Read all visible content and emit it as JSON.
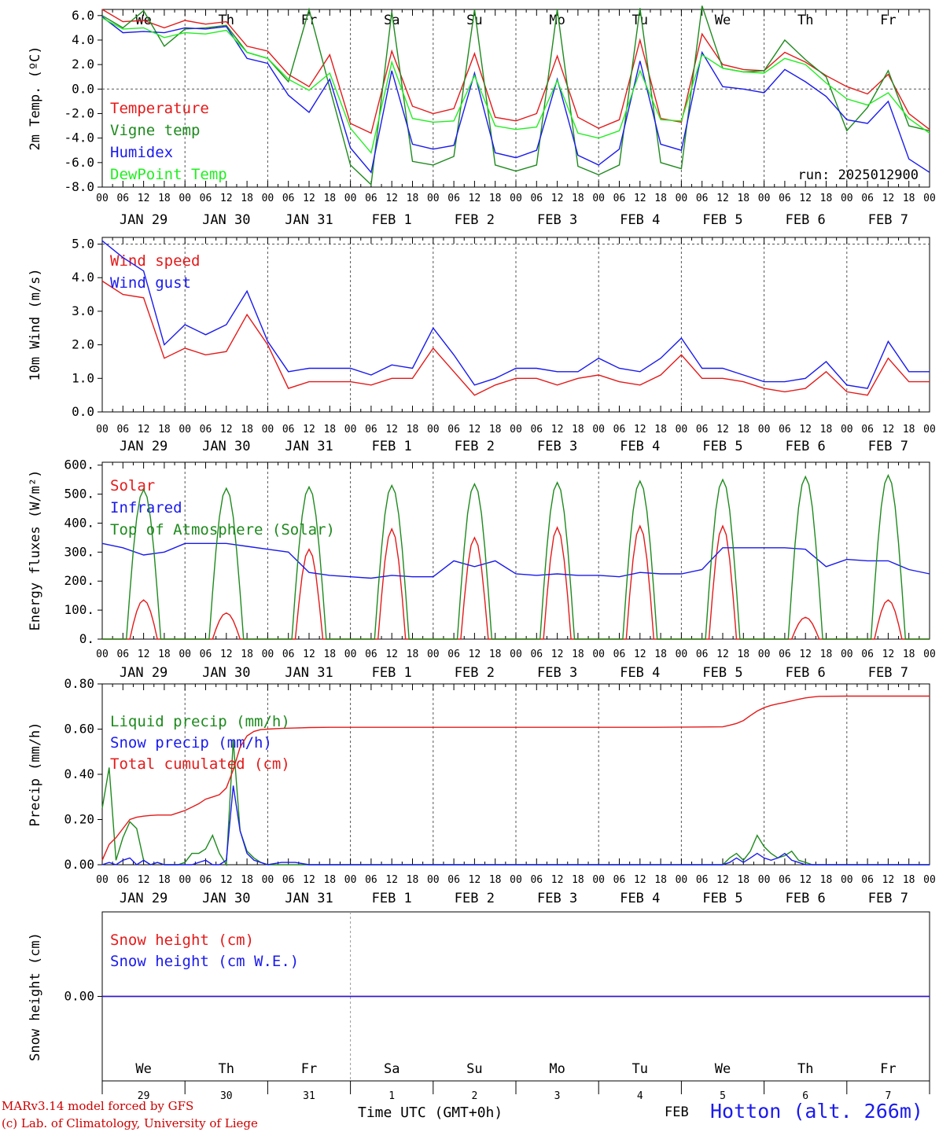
{
  "run_label": "run: 2025012900",
  "station": "Hotton (alt. 266m)",
  "credit_lines": [
    "MARv3.14 model forced by GFS",
    "(c) Lab. of Climatology, University of Liege"
  ],
  "time_axis_label": "Time UTC (GMT+0h)",
  "month_label": "FEB",
  "weekdays": [
    {
      "label": "We",
      "color": "#000000"
    },
    {
      "label": "Th",
      "color": "#000000"
    },
    {
      "label": "Fr",
      "color": "#000000"
    },
    {
      "label": "Sa",
      "color": "#e41a1a"
    },
    {
      "label": "Su",
      "color": "#e41a1a"
    },
    {
      "label": "Mo",
      "color": "#000000"
    },
    {
      "label": "Tu",
      "color": "#000000"
    },
    {
      "label": "We",
      "color": "#000000"
    },
    {
      "label": "Th",
      "color": "#000000"
    },
    {
      "label": "Fr",
      "color": "#000000"
    }
  ],
  "dates": [
    "JAN 29",
    "JAN 30",
    "JAN 31",
    "FEB  1",
    "FEB  2",
    "FEB  3",
    "FEB  4",
    "FEB  5",
    "FEB  6",
    "FEB  7"
  ],
  "day_numbers": [
    "29",
    "30",
    "31",
    "1",
    "2",
    "3",
    "4",
    "5",
    "6",
    "7"
  ],
  "hour_ticks": [
    "00",
    "06",
    "12",
    "18"
  ],
  "colors": {
    "red": "#e41a1a",
    "darkgreen": "#1e8a1e",
    "blue": "#1a1aee",
    "lightgreen": "#22ee22",
    "grid": "#555555"
  },
  "chart_data": [
    {
      "type": "line",
      "ylabel": "2m Temp. (ºC)",
      "ylim": [
        -8,
        6.5
      ],
      "yticks": [
        "6.0",
        "4.0",
        "2.0",
        "0.0",
        "-2.0",
        "-4.0",
        "-6.0",
        "-8.0"
      ],
      "ytick_values": [
        6,
        4,
        2,
        0,
        -2,
        -4,
        -6,
        -8
      ],
      "dashed_y": [
        0
      ],
      "show_weekdays": true,
      "x_hours": [
        0,
        6,
        12,
        18,
        24,
        30,
        36,
        42,
        48,
        54,
        60,
        66,
        72,
        78,
        84,
        90,
        96,
        102,
        108,
        114,
        120,
        126,
        132,
        138,
        144,
        150,
        156,
        162,
        168,
        174,
        180,
        186,
        192,
        198,
        204,
        210,
        216,
        222,
        228,
        234,
        240
      ],
      "series": [
        {
          "name": "Temperature",
          "color": "#e41a1a",
          "values": [
            6.5,
            5.5,
            5.6,
            5.0,
            5.6,
            5.3,
            5.5,
            3.5,
            3.1,
            1.2,
            0.2,
            2.8,
            -2.8,
            -3.6,
            3.1,
            -1.4,
            -2.0,
            -1.6,
            2.9,
            -2.3,
            -2.6,
            -2.0,
            2.7,
            -2.3,
            -3.2,
            -2.5,
            4.0,
            -2.4,
            -2.7,
            4.5,
            2.0,
            1.6,
            1.5,
            3.0,
            2.2,
            1.1,
            0.2,
            -0.4,
            1.2,
            -2.0,
            -3.3
          ]
        },
        {
          "name": "Vigne temp",
          "color": "#1e8a1e",
          "values": [
            6.0,
            5.0,
            6.4,
            3.5,
            4.9,
            5.0,
            5.2,
            3.0,
            2.5,
            0.6,
            6.5,
            0.1,
            -6.2,
            -7.8,
            6.3,
            -5.9,
            -6.2,
            -5.5,
            6.5,
            -6.2,
            -6.7,
            -6.2,
            6.5,
            -6.3,
            -7.0,
            -6.2,
            6.6,
            -6.0,
            -6.5,
            6.8,
            1.7,
            1.4,
            1.5,
            4.0,
            2.4,
            1.0,
            -3.4,
            -1.5,
            1.5,
            -3.0,
            -3.4
          ]
        },
        {
          "name": "Humidex",
          "color": "#1a1aee",
          "values": [
            5.9,
            4.6,
            4.7,
            4.6,
            5.0,
            4.9,
            5.1,
            2.5,
            2.1,
            -0.5,
            -1.9,
            0.8,
            -4.8,
            -6.8,
            1.5,
            -4.5,
            -4.9,
            -4.6,
            1.3,
            -5.2,
            -5.6,
            -5.0,
            0.8,
            -5.4,
            -6.2,
            -4.9,
            2.3,
            -4.5,
            -5.0,
            3.0,
            0.2,
            0.0,
            -0.3,
            1.6,
            0.6,
            -0.6,
            -2.5,
            -2.8,
            -1.0,
            -5.7,
            -6.8
          ]
        },
        {
          "name": "DewPoint Temp",
          "color": "#22ee22",
          "values": [
            5.8,
            4.9,
            5.0,
            4.2,
            4.6,
            4.5,
            4.8,
            3.0,
            2.5,
            0.8,
            -0.1,
            1.3,
            -3.2,
            -5.2,
            2.2,
            -2.4,
            -2.7,
            -2.6,
            1.1,
            -3.0,
            -3.3,
            -3.1,
            0.7,
            -3.6,
            -4.0,
            -3.4,
            1.5,
            -2.5,
            -2.6,
            2.8,
            1.7,
            1.4,
            1.3,
            2.5,
            2.0,
            0.5,
            -0.8,
            -1.3,
            -0.3,
            -2.4,
            -3.6
          ]
        }
      ]
    },
    {
      "type": "line",
      "ylabel": "10m Wind (m/s)",
      "ylim": [
        0,
        5.2
      ],
      "yticks": [
        "5.0",
        "4.0",
        "3.0",
        "2.0",
        "1.0",
        "0.0"
      ],
      "ytick_values": [
        5,
        4,
        3,
        2,
        1,
        0
      ],
      "dashed_y": [
        5
      ],
      "x_hours": [
        0,
        6,
        12,
        18,
        24,
        30,
        36,
        42,
        48,
        54,
        60,
        66,
        72,
        78,
        84,
        90,
        96,
        102,
        108,
        114,
        120,
        126,
        132,
        138,
        144,
        150,
        156,
        162,
        168,
        174,
        180,
        186,
        192,
        198,
        204,
        210,
        216,
        222,
        228,
        234,
        240
      ],
      "series": [
        {
          "name": "Wind speed",
          "color": "#e41a1a",
          "values": [
            3.9,
            3.5,
            3.4,
            1.6,
            1.9,
            1.7,
            1.8,
            2.9,
            2.0,
            0.7,
            0.9,
            0.9,
            0.9,
            0.8,
            1.0,
            1.0,
            1.9,
            1.2,
            0.5,
            0.8,
            1.0,
            1.0,
            0.8,
            1.0,
            1.1,
            0.9,
            0.8,
            1.1,
            1.7,
            1.0,
            1.0,
            0.9,
            0.7,
            0.6,
            0.7,
            1.2,
            0.6,
            0.5,
            1.6,
            0.9,
            0.9
          ]
        },
        {
          "name": "Wind gust",
          "color": "#1a1aee",
          "values": [
            5.1,
            4.6,
            4.2,
            2.0,
            2.6,
            2.3,
            2.6,
            3.6,
            2.1,
            1.2,
            1.3,
            1.3,
            1.3,
            1.1,
            1.4,
            1.3,
            2.5,
            1.7,
            0.8,
            1.0,
            1.3,
            1.3,
            1.2,
            1.2,
            1.6,
            1.3,
            1.2,
            1.6,
            2.2,
            1.3,
            1.3,
            1.1,
            0.9,
            0.9,
            1.0,
            1.5,
            0.8,
            0.7,
            2.1,
            1.2,
            1.2
          ]
        }
      ]
    },
    {
      "type": "line",
      "ylabel": "Energy fluxes (W/m²)",
      "ylim": [
        0,
        610
      ],
      "yticks": [
        "600.",
        "500.",
        "400.",
        "300.",
        "200.",
        "100.",
        "0."
      ],
      "ytick_values": [
        600,
        500,
        400,
        300,
        200,
        100,
        0
      ],
      "series": [
        {
          "name": "Solar",
          "color": "#e41a1a",
          "peaks": [
            135,
            90,
            310,
            380,
            350,
            385,
            390,
            390,
            75,
            135
          ]
        },
        {
          "name": "Infrared",
          "color": "#1a1aee",
          "x_hours": [
            0,
            6,
            12,
            18,
            24,
            30,
            36,
            42,
            48,
            54,
            60,
            66,
            72,
            78,
            84,
            90,
            96,
            102,
            108,
            114,
            120,
            126,
            132,
            138,
            144,
            150,
            156,
            162,
            168,
            174,
            180,
            186,
            192,
            198,
            204,
            210,
            216,
            222,
            228,
            234,
            240
          ],
          "values": [
            330,
            315,
            290,
            300,
            330,
            330,
            330,
            320,
            310,
            300,
            230,
            220,
            215,
            210,
            220,
            215,
            215,
            270,
            250,
            270,
            225,
            220,
            225,
            220,
            220,
            215,
            230,
            225,
            225,
            240,
            315,
            315,
            315,
            315,
            310,
            250,
            275,
            270,
            270,
            240,
            225
          ]
        },
        {
          "name": "Top of Atmosphere (Solar)",
          "color": "#1e8a1e",
          "peaks": [
            515,
            520,
            525,
            530,
            535,
            540,
            545,
            550,
            560,
            565
          ]
        }
      ]
    },
    {
      "type": "line",
      "ylabel": "Precip (mm/h)",
      "ylim": [
        0,
        0.8
      ],
      "yticks": [
        "0.80",
        "0.60",
        "0.40",
        "0.20",
        "0.00"
      ],
      "ytick_values": [
        0.8,
        0.6,
        0.4,
        0.2,
        0.0
      ],
      "x_hours": [
        0,
        2,
        4,
        6,
        8,
        10,
        12,
        14,
        16,
        18,
        20,
        22,
        24,
        26,
        28,
        30,
        32,
        34,
        36,
        38,
        40,
        42,
        44,
        46,
        48,
        52,
        56,
        60,
        66,
        72,
        96,
        120,
        144,
        160,
        180,
        182,
        184,
        186,
        188,
        190,
        192,
        194,
        196,
        198,
        200,
        202,
        204,
        206,
        208,
        216,
        240
      ],
      "series": [
        {
          "name": "Liquid precip (mm/h)",
          "color": "#1e8a1e",
          "values": [
            0.25,
            0.43,
            0.02,
            0.12,
            0.19,
            0.16,
            0.02,
            0.0,
            0.01,
            0.0,
            0.0,
            0.0,
            0.01,
            0.05,
            0.05,
            0.07,
            0.13,
            0.05,
            0.0,
            0.55,
            0.15,
            0.06,
            0.03,
            0.01,
            0.0,
            0.0,
            0.0,
            0.0,
            0.0,
            0.0,
            0.0,
            0.0,
            0.0,
            0.0,
            0.0,
            0.03,
            0.05,
            0.02,
            0.06,
            0.13,
            0.08,
            0.05,
            0.03,
            0.04,
            0.06,
            0.02,
            0.01,
            0.0,
            0.0,
            0.0,
            0.0
          ]
        },
        {
          "name": "Snow precip (mm/h)",
          "color": "#1a1aee",
          "values": [
            0.0,
            0.01,
            0.0,
            0.02,
            0.03,
            0.0,
            0.02,
            0.0,
            0.01,
            0.0,
            0.0,
            0.0,
            0.0,
            0.0,
            0.01,
            0.02,
            0.0,
            0.0,
            0.02,
            0.35,
            0.15,
            0.05,
            0.02,
            0.01,
            0.0,
            0.01,
            0.01,
            0.0,
            0.0,
            0.0,
            0.0,
            0.0,
            0.0,
            0.0,
            0.0,
            0.01,
            0.03,
            0.01,
            0.03,
            0.05,
            0.03,
            0.02,
            0.03,
            0.05,
            0.02,
            0.01,
            0.0,
            0.0,
            0.0,
            0.0,
            0.0
          ]
        },
        {
          "name": "Total cumulated (cm)",
          "color": "#e41a1a",
          "values": [
            0.02,
            0.09,
            0.12,
            0.16,
            0.2,
            0.21,
            0.215,
            0.218,
            0.22,
            0.22,
            0.22,
            0.23,
            0.24,
            0.255,
            0.27,
            0.29,
            0.3,
            0.31,
            0.34,
            0.42,
            0.52,
            0.57,
            0.59,
            0.598,
            0.6,
            0.603,
            0.605,
            0.607,
            0.608,
            0.608,
            0.608,
            0.608,
            0.608,
            0.608,
            0.61,
            0.617,
            0.625,
            0.638,
            0.66,
            0.68,
            0.695,
            0.705,
            0.712,
            0.718,
            0.725,
            0.732,
            0.738,
            0.742,
            0.745,
            0.746,
            0.746
          ]
        }
      ]
    },
    {
      "type": "line",
      "ylabel": "Snow height (cm)",
      "yticks": [
        "0.00"
      ],
      "ytick_values": [
        0
      ],
      "ylim": [
        -1,
        1
      ],
      "series": [
        {
          "name": "Snow height (cm)",
          "color": "#e41a1a",
          "x_hours": [
            0,
            240
          ],
          "values": [
            0,
            0
          ]
        },
        {
          "name": "Snow height (cm W.E.)",
          "color": "#1a1aee",
          "x_hours": [
            0,
            240
          ],
          "values": [
            0,
            0
          ]
        }
      ]
    }
  ]
}
